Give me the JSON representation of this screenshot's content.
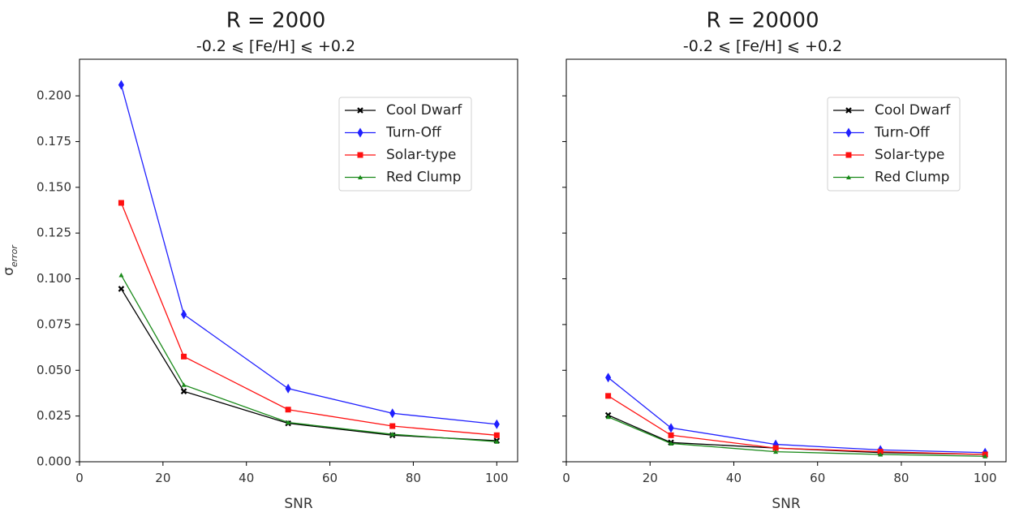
{
  "chart_data": [
    {
      "type": "line",
      "title": "R = 2000",
      "subtitle": "-0.2 ⩽ [Fe/H] ⩽ +0.2",
      "xlabel": "SNR",
      "ylabel": "σ",
      "ylabel_sub": "error",
      "xlim": [
        0,
        105
      ],
      "ylim": [
        0,
        0.22
      ],
      "xticks": [
        0,
        20,
        40,
        60,
        80,
        100
      ],
      "yticks": [
        0.0,
        0.025,
        0.05,
        0.075,
        0.1,
        0.125,
        0.15,
        0.175,
        0.2
      ],
      "ytick_labels": [
        "0.000",
        "0.025",
        "0.050",
        "0.075",
        "0.100",
        "0.125",
        "0.150",
        "0.175",
        "0.200"
      ],
      "show_yticklabels": true,
      "legend_position": "top-right",
      "x": [
        10,
        25,
        50,
        75,
        100
      ],
      "series": [
        {
          "name": "Cool Dwarf",
          "color": "#000000",
          "marker": "x",
          "values": [
            0.0945,
            0.0385,
            0.021,
            0.0145,
            0.0115
          ]
        },
        {
          "name": "Turn-Off",
          "color": "#2020ff",
          "marker": "diamond",
          "values": [
            0.206,
            0.0805,
            0.04,
            0.0265,
            0.0205
          ]
        },
        {
          "name": "Solar-type",
          "color": "#ff1010",
          "marker": "square",
          "values": [
            0.1415,
            0.0575,
            0.0285,
            0.0195,
            0.0145
          ]
        },
        {
          "name": "Red Clump",
          "color": "#1a8a1a",
          "marker": "triangle",
          "values": [
            0.102,
            0.042,
            0.0215,
            0.015,
            0.011
          ]
        }
      ]
    },
    {
      "type": "line",
      "title": "R = 20000",
      "subtitle": "-0.2 ⩽ [Fe/H] ⩽ +0.2",
      "xlabel": "SNR",
      "ylabel": "",
      "ylabel_sub": "",
      "xlim": [
        0,
        105
      ],
      "ylim": [
        0,
        0.22
      ],
      "xticks": [
        0,
        20,
        40,
        60,
        80,
        100
      ],
      "yticks": [
        0.0,
        0.025,
        0.05,
        0.075,
        0.1,
        0.125,
        0.15,
        0.175,
        0.2
      ],
      "ytick_labels": [
        "",
        "",
        "",
        "",
        "",
        "",
        "",
        "",
        ""
      ],
      "show_yticklabels": false,
      "legend_position": "top-right",
      "x": [
        10,
        25,
        50,
        75,
        100
      ],
      "series": [
        {
          "name": "Cool Dwarf",
          "color": "#000000",
          "marker": "x",
          "values": [
            0.0255,
            0.0105,
            0.0075,
            0.005,
            0.004
          ]
        },
        {
          "name": "Turn-Off",
          "color": "#2020ff",
          "marker": "diamond",
          "values": [
            0.046,
            0.0185,
            0.0095,
            0.0065,
            0.005
          ]
        },
        {
          "name": "Solar-type",
          "color": "#ff1010",
          "marker": "square",
          "values": [
            0.036,
            0.0145,
            0.0075,
            0.0055,
            0.004
          ]
        },
        {
          "name": "Red Clump",
          "color": "#1a8a1a",
          "marker": "triangle",
          "values": [
            0.0245,
            0.01,
            0.0055,
            0.004,
            0.003
          ]
        }
      ]
    }
  ]
}
